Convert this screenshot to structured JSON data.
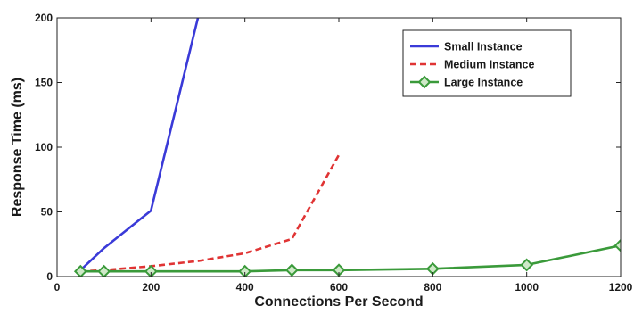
{
  "chart_data": {
    "type": "line",
    "title": "",
    "xlabel": "Connections Per Second",
    "ylabel": "Response Time (ms)",
    "xlim": [
      0,
      1200
    ],
    "ylim": [
      0,
      200
    ],
    "xticks": [
      "0",
      "200",
      "400",
      "600",
      "800",
      "1000",
      "1200"
    ],
    "yticks": [
      "0",
      "50",
      "100",
      "150",
      "200"
    ],
    "grid": false,
    "legend_position": "top-right",
    "series": [
      {
        "name": "Small Instance",
        "color": "#3a3ad8",
        "style": "solid",
        "marker": "none",
        "x": [
          50,
          100,
          200,
          300
        ],
        "y": [
          5,
          22,
          51,
          200
        ]
      },
      {
        "name": "Medium Instance",
        "color": "#e03434",
        "style": "dashed",
        "marker": "none",
        "x": [
          50,
          100,
          200,
          300,
          400,
          500,
          600
        ],
        "y": [
          4,
          5,
          8,
          12,
          18,
          29,
          94
        ]
      },
      {
        "name": "Large Instance",
        "color": "#3a9a3a",
        "style": "solid",
        "marker": "diamond",
        "x": [
          50,
          100,
          200,
          400,
          500,
          600,
          800,
          1000,
          1200
        ],
        "y": [
          4,
          4,
          4,
          4,
          5,
          5,
          6,
          9,
          24
        ]
      }
    ]
  }
}
